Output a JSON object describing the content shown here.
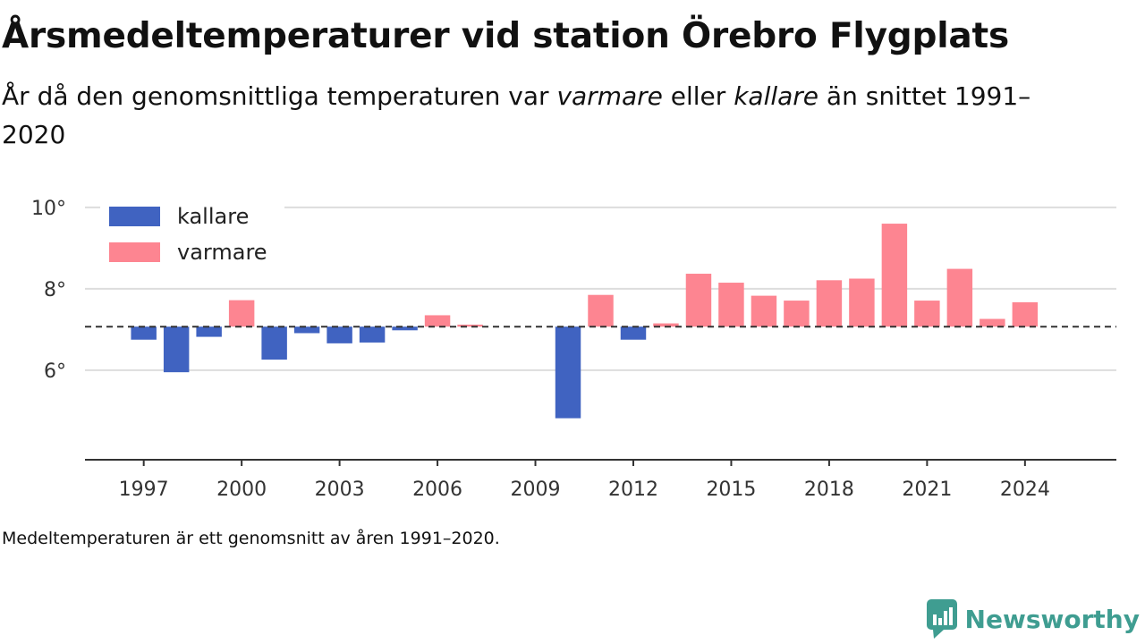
{
  "title": "Årsmedeltemperaturer vid station Örebro Flygplats",
  "subtitle": {
    "part1": "År då den genomsnittliga temperaturen var ",
    "em1": "varmare",
    "part2": " eller ",
    "em2": "kallare",
    "part3": " än snittet 1991–2020"
  },
  "footnote": "Medeltemperaturen är ett genomsnitt av åren 1991–2020.",
  "brand": {
    "name": "Newsworthy",
    "icon": "newsworthy-logo-icon",
    "color": "#3f9d91"
  },
  "chart_data": {
    "type": "bar",
    "baseline": 7.07,
    "ylim": [
      3.8,
      10.7
    ],
    "y_ticks": [
      {
        "value": 6,
        "label": "6°"
      },
      {
        "value": 8,
        "label": "8°"
      },
      {
        "value": 10,
        "label": "10°"
      }
    ],
    "x_range": [
      1995.2,
      2026.8
    ],
    "x_ticks": [
      {
        "value": 1997,
        "label": "1997"
      },
      {
        "value": 2000,
        "label": "2000"
      },
      {
        "value": 2003,
        "label": "2003"
      },
      {
        "value": 2006,
        "label": "2006"
      },
      {
        "value": 2009,
        "label": "2009"
      },
      {
        "value": 2012,
        "label": "2012"
      },
      {
        "value": 2015,
        "label": "2015"
      },
      {
        "value": 2018,
        "label": "2018"
      },
      {
        "value": 2021,
        "label": "2021"
      },
      {
        "value": 2024,
        "label": "2024"
      }
    ],
    "legend": {
      "placement": "top-left",
      "items": [
        {
          "key": "colder",
          "label": "kallare",
          "color": "#4063c1"
        },
        {
          "key": "warmer",
          "label": "varmare",
          "color": "#fd8591"
        }
      ]
    },
    "grid": true,
    "bars": [
      {
        "year": 1997,
        "value": 6.75
      },
      {
        "year": 1998,
        "value": 5.95
      },
      {
        "year": 1999,
        "value": 6.82
      },
      {
        "year": 2000,
        "value": 7.72
      },
      {
        "year": 2001,
        "value": 6.26
      },
      {
        "year": 2002,
        "value": 6.91
      },
      {
        "year": 2003,
        "value": 6.66
      },
      {
        "year": 2004,
        "value": 6.68
      },
      {
        "year": 2005,
        "value": 6.98
      },
      {
        "year": 2006,
        "value": 7.35
      },
      {
        "year": 2007,
        "value": 7.12
      },
      {
        "year": 2010,
        "value": 4.82
      },
      {
        "year": 2011,
        "value": 7.85
      },
      {
        "year": 2012,
        "value": 6.75
      },
      {
        "year": 2013,
        "value": 7.15
      },
      {
        "year": 2014,
        "value": 8.37
      },
      {
        "year": 2015,
        "value": 8.15
      },
      {
        "year": 2016,
        "value": 7.83
      },
      {
        "year": 2017,
        "value": 7.71
      },
      {
        "year": 2018,
        "value": 8.21
      },
      {
        "year": 2019,
        "value": 8.25
      },
      {
        "year": 2020,
        "value": 9.6
      },
      {
        "year": 2021,
        "value": 7.71
      },
      {
        "year": 2022,
        "value": 8.49
      },
      {
        "year": 2023,
        "value": 7.26
      },
      {
        "year": 2024,
        "value": 7.67
      }
    ]
  }
}
